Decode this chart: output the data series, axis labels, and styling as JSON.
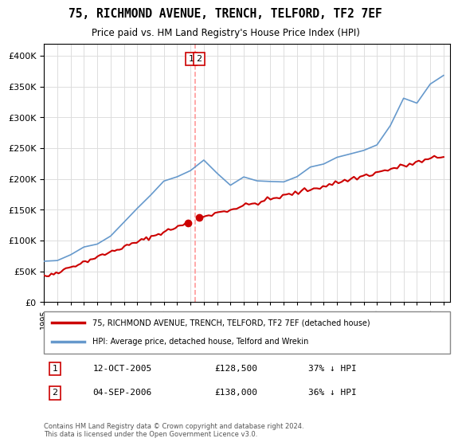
{
  "title": "75, RICHMOND AVENUE, TRENCH, TELFORD, TF2 7EF",
  "subtitle": "Price paid vs. HM Land Registry's House Price Index (HPI)",
  "legend_line1": "75, RICHMOND AVENUE, TRENCH, TELFORD, TF2 7EF (detached house)",
  "legend_line2": "HPI: Average price, detached house, Telford and Wrekin",
  "sale1_label": "1",
  "sale1_date": "12-OCT-2005",
  "sale1_price": "£128,500",
  "sale1_hpi": "37% ↓ HPI",
  "sale2_label": "2",
  "sale2_date": "04-SEP-2006",
  "sale2_price": "£138,000",
  "sale2_hpi": "36% ↓ HPI",
  "footnote": "Contains HM Land Registry data © Crown copyright and database right 2024.\nThis data is licensed under the Open Government Licence v3.0.",
  "red_color": "#cc0000",
  "blue_color": "#6699cc",
  "vline_color": "#ff9999",
  "box_color": "#cc0000",
  "ylim": [
    0,
    420000
  ],
  "xlim_start": 1995.0,
  "xlim_end": 2025.5,
  "sale1_year": 2005.79,
  "sale1_value": 128500,
  "sale1_hpi_value": 203968,
  "sale2_year": 2006.67,
  "sale2_value": 138000,
  "sale2_hpi_value": 215625
}
